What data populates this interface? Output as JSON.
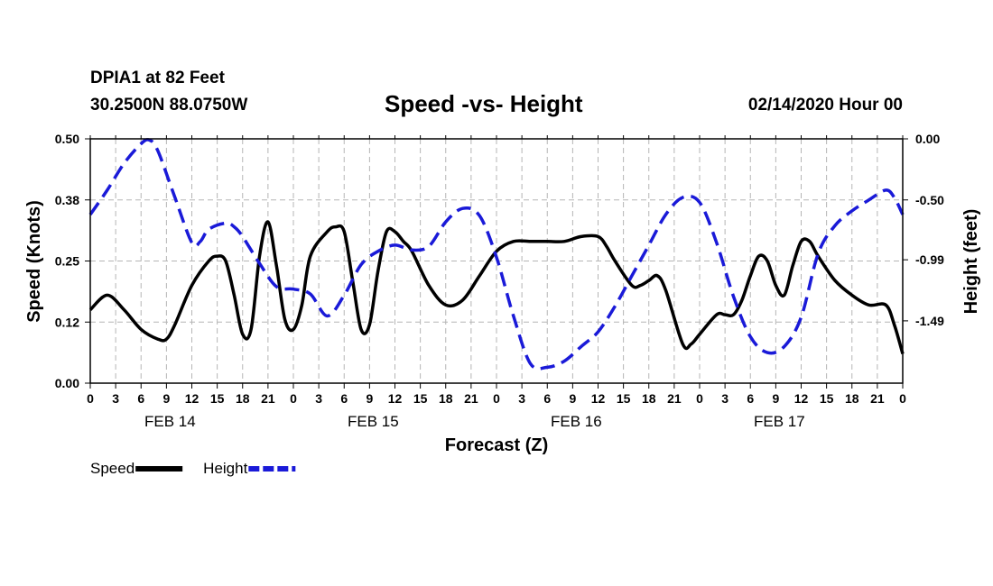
{
  "header": {
    "station": "DPIA1 at 82 Feet",
    "coords": "30.2500N 88.0750W",
    "title": "Speed -vs- Height",
    "timestamp": "02/14/2020 Hour 00"
  },
  "chart_data": {
    "type": "line",
    "title": "Speed -vs- Height",
    "xlabel": "Forecast (Z)",
    "ylabel": "Speed (Knots)",
    "y2label": "Height (feet)",
    "x_hours": [
      0,
      3,
      6,
      9,
      12,
      15,
      18,
      21,
      24,
      27,
      30,
      33,
      36,
      39,
      42,
      45,
      48,
      51,
      54,
      57,
      60,
      63,
      66,
      69,
      72,
      75,
      78,
      81,
      84,
      87,
      90,
      93,
      96
    ],
    "x_tick_labels": [
      "0",
      "3",
      "6",
      "9",
      "12",
      "15",
      "18",
      "21",
      "0",
      "3",
      "6",
      "9",
      "12",
      "15",
      "18",
      "21",
      "0",
      "3",
      "6",
      "9",
      "12",
      "15",
      "18",
      "21",
      "0",
      "3",
      "6",
      "9",
      "12",
      "15",
      "18",
      "21",
      "0"
    ],
    "day_labels": [
      {
        "label": "FEB 14",
        "hour": 9
      },
      {
        "label": "FEB 15",
        "hour": 33
      },
      {
        "label": "FEB 16",
        "hour": 57
      },
      {
        "label": "FEB 17",
        "hour": 81
      }
    ],
    "ylim": [
      0,
      0.5
    ],
    "y_ticks": [
      0.0,
      0.125,
      0.25,
      0.375,
      0.5
    ],
    "y_tick_labels": [
      "0.00",
      "0.12",
      "0.25",
      "0.38",
      "0.50"
    ],
    "y2lim": [
      -2.0,
      0.0
    ],
    "y2_ticks": [
      0.0,
      -0.5,
      -0.99,
      -1.49
    ],
    "y2_tick_labels": [
      "0.00",
      "-0.50",
      "-0.99",
      "-1.49"
    ],
    "series": [
      {
        "name": "Speed",
        "axis": "left",
        "color": "#000000",
        "dash": "solid",
        "x": [
          0,
          2,
          4,
          6,
          8,
          9,
          10,
          12,
          14,
          15,
          16,
          17,
          18,
          19,
          20,
          21,
          22,
          23,
          24,
          25,
          26,
          28,
          29,
          30,
          31,
          32,
          33,
          34,
          35,
          36,
          37,
          38,
          40,
          42,
          44,
          46,
          48,
          50,
          52,
          54,
          56,
          58,
          60,
          61,
          62,
          64,
          65,
          66,
          67,
          68,
          70,
          71,
          72,
          74,
          75,
          76,
          77,
          78,
          79,
          80,
          81,
          82,
          83,
          84,
          85,
          86,
          88,
          90,
          92,
          94,
          95,
          96
        ],
        "values": [
          0.15,
          0.18,
          0.15,
          0.11,
          0.09,
          0.09,
          0.12,
          0.2,
          0.25,
          0.26,
          0.25,
          0.18,
          0.1,
          0.11,
          0.26,
          0.33,
          0.24,
          0.13,
          0.11,
          0.16,
          0.26,
          0.31,
          0.32,
          0.31,
          0.21,
          0.11,
          0.12,
          0.23,
          0.31,
          0.31,
          0.29,
          0.27,
          0.2,
          0.16,
          0.17,
          0.22,
          0.27,
          0.29,
          0.29,
          0.29,
          0.29,
          0.3,
          0.3,
          0.28,
          0.25,
          0.2,
          0.2,
          0.21,
          0.22,
          0.19,
          0.08,
          0.08,
          0.1,
          0.14,
          0.14,
          0.14,
          0.17,
          0.22,
          0.26,
          0.25,
          0.2,
          0.18,
          0.24,
          0.29,
          0.29,
          0.26,
          0.21,
          0.18,
          0.16,
          0.16,
          0.12,
          0.06
        ]
      },
      {
        "name": "Height",
        "axis": "right",
        "color": "#1a1ad8",
        "dash": "dashed",
        "x": [
          0,
          2,
          4,
          6,
          7,
          8,
          10,
          12,
          13,
          14,
          16,
          17,
          18,
          20,
          22,
          24,
          26,
          28,
          30,
          32,
          34,
          36,
          38,
          40,
          42,
          44,
          46,
          48,
          50,
          52,
          54,
          56,
          58,
          60,
          62,
          64,
          66,
          68,
          70,
          72,
          74,
          76,
          78,
          80,
          82,
          84,
          86,
          88,
          90,
          92,
          94,
          95,
          96
        ],
        "values": [
          -0.62,
          -0.42,
          -0.2,
          -0.04,
          -0.01,
          -0.1,
          -0.48,
          -0.85,
          -0.84,
          -0.74,
          -0.69,
          -0.72,
          -0.8,
          -1.02,
          -1.21,
          -1.23,
          -1.27,
          -1.45,
          -1.28,
          -1.03,
          -0.92,
          -0.87,
          -0.91,
          -0.88,
          -0.68,
          -0.57,
          -0.63,
          -0.97,
          -1.45,
          -1.84,
          -1.87,
          -1.82,
          -1.7,
          -1.58,
          -1.37,
          -1.12,
          -0.87,
          -0.62,
          -0.48,
          -0.52,
          -0.85,
          -1.29,
          -1.62,
          -1.75,
          -1.7,
          -1.46,
          -0.94,
          -0.71,
          -0.59,
          -0.5,
          -0.42,
          -0.48,
          -0.62
        ]
      }
    ],
    "legend": [
      {
        "label": "Speed",
        "color": "#000000",
        "dash": "solid"
      },
      {
        "label": "Height",
        "color": "#1a1ad8",
        "dash": "dashed"
      }
    ],
    "legend_position": "bottom-left",
    "grid": true
  }
}
